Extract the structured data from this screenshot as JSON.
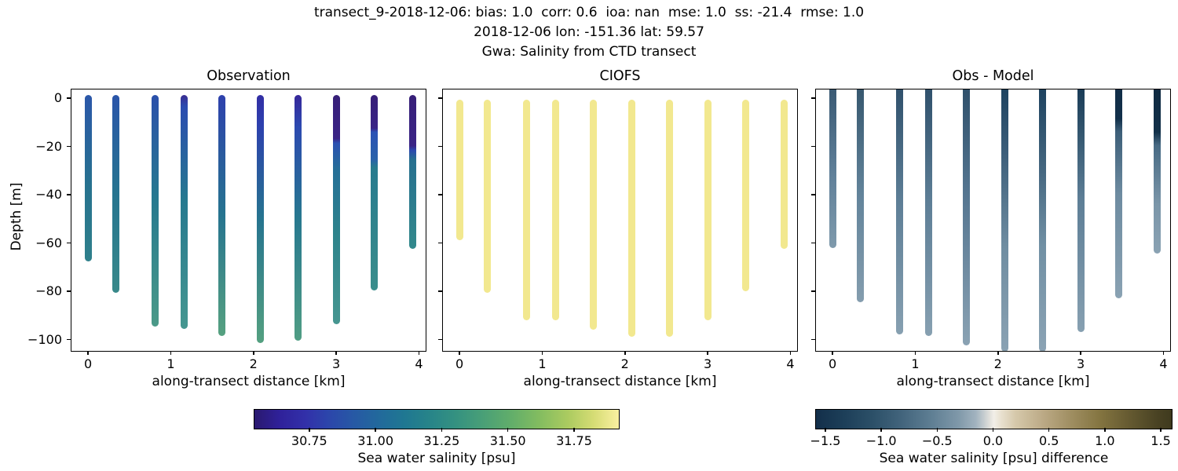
{
  "figure_title": {
    "line1": "transect_9-2018-12-06: bias: 1.0  corr: 0.6  ioa: nan  mse: 1.0  ss: -21.4  rmse: 1.0",
    "line2": "2018-12-06 lon: -151.36 lat: 59.57",
    "line3": "Gwa: Salinity from CTD transect"
  },
  "stats": {
    "bias": "1.0",
    "corr": "0.6",
    "ioa": "nan",
    "mse": "1.0",
    "ss": "-21.4",
    "rmse": "1.0"
  },
  "location": {
    "date": "2018-12-06",
    "lon": "-151.36",
    "lat": "59.57"
  },
  "chart_data": {
    "type": "scatter",
    "x_label": "along-transect distance [km]",
    "y_label": "Depth [m]",
    "x_range": [
      -0.2,
      4.1
    ],
    "y_range_top": 3.6,
    "y_range_bottom": -105.3,
    "x_ticks": [
      {
        "v": 0,
        "label": "0"
      },
      {
        "v": 1,
        "label": "1"
      },
      {
        "v": 2,
        "label": "2"
      },
      {
        "v": 3,
        "label": "3"
      },
      {
        "v": 4,
        "label": "4"
      }
    ],
    "y_ticks": [
      {
        "v": 0,
        "label": "0"
      },
      {
        "v": -20,
        "label": "−20"
      },
      {
        "v": -40,
        "label": "−40"
      },
      {
        "v": -60,
        "label": "−60"
      },
      {
        "v": -80,
        "label": "−80"
      },
      {
        "v": -100,
        "label": "−100"
      }
    ],
    "stations_km": [
      0.0,
      0.34,
      0.81,
      1.16,
      1.62,
      2.08,
      2.54,
      3.0,
      3.46,
      3.92
    ],
    "panels": [
      {
        "title": "Observation",
        "top": 0,
        "columns": [
          {
            "bottom": -66,
            "stops": [
              [
                0,
                "#2b57a9"
              ],
              [
                0.55,
                "#27728f"
              ],
              [
                1,
                "#2f808b"
              ]
            ]
          },
          {
            "bottom": -79,
            "stops": [
              [
                0,
                "#2a55a9"
              ],
              [
                0.5,
                "#26748f"
              ],
              [
                1,
                "#38898a"
              ]
            ]
          },
          {
            "bottom": -93,
            "stops": [
              [
                0,
                "#2b50ab"
              ],
              [
                0.45,
                "#26798f"
              ],
              [
                1,
                "#4b9a88"
              ]
            ]
          },
          {
            "bottom": -94,
            "stops": [
              [
                0,
                "#3b2d92"
              ],
              [
                0.05,
                "#2b4cb0"
              ],
              [
                0.45,
                "#26798f"
              ],
              [
                1,
                "#469790"
              ]
            ]
          },
          {
            "bottom": -97,
            "stops": [
              [
                0,
                "#2e41ad"
              ],
              [
                0.5,
                "#26748f"
              ],
              [
                1,
                "#56a180"
              ]
            ]
          },
          {
            "bottom": -100,
            "stops": [
              [
                0,
                "#322ea4"
              ],
              [
                0.12,
                "#2d40ae"
              ],
              [
                0.5,
                "#26748f"
              ],
              [
                1,
                "#54a080"
              ]
            ]
          },
          {
            "bottom": -99,
            "stops": [
              [
                0,
                "#36279a"
              ],
              [
                0.13,
                "#2c49b0"
              ],
              [
                0.5,
                "#27788f"
              ],
              [
                1,
                "#509d84"
              ]
            ]
          },
          {
            "bottom": -92,
            "stops": [
              [
                0,
                "#371f78"
              ],
              [
                0.19,
                "#3a2486"
              ],
              [
                0.21,
                "#2b50b2"
              ],
              [
                0.33,
                "#256f97"
              ],
              [
                0.6,
                "#2d838c"
              ],
              [
                1,
                "#469690"
              ]
            ]
          },
          {
            "bottom": -78,
            "stops": [
              [
                0,
                "#371f78"
              ],
              [
                0.17,
                "#3a2486"
              ],
              [
                0.19,
                "#2b52b5"
              ],
              [
                0.33,
                "#2a62a9"
              ],
              [
                0.37,
                "#277b8e"
              ],
              [
                1,
                "#3b8e8c"
              ]
            ]
          },
          {
            "bottom": -61,
            "stops": [
              [
                0,
                "#371f78"
              ],
              [
                0.33,
                "#3a2486"
              ],
              [
                0.36,
                "#2b49ae"
              ],
              [
                0.42,
                "#27708f"
              ],
              [
                1,
                "#33898c"
              ]
            ]
          }
        ]
      },
      {
        "title": "CIOFS",
        "top": -2,
        "color": "#f2e88f",
        "columns": [
          {
            "bottom": -57.5
          },
          {
            "bottom": -79
          },
          {
            "bottom": -90.5
          },
          {
            "bottom": -90.5
          },
          {
            "bottom": -94.5
          },
          {
            "bottom": -97.5
          },
          {
            "bottom": -97.5
          },
          {
            "bottom": -90.5
          },
          {
            "bottom": -78.5
          },
          {
            "bottom": -61
          }
        ]
      },
      {
        "title": "Obs - Model",
        "clip_top": true,
        "columns": [
          {
            "bottom": -60.5,
            "stops": [
              [
                0,
                "#3a5a74"
              ],
              [
                0.55,
                "#61819a"
              ],
              [
                1,
                "#7f9aac"
              ]
            ]
          },
          {
            "bottom": -83,
            "stops": [
              [
                0,
                "#37586f"
              ],
              [
                0.5,
                "#63849b"
              ],
              [
                1,
                "#849dae"
              ]
            ]
          },
          {
            "bottom": -96.5,
            "stops": [
              [
                0,
                "#30516c"
              ],
              [
                0.45,
                "#5d7e96"
              ],
              [
                1,
                "#87a0b1"
              ]
            ]
          },
          {
            "bottom": -97,
            "stops": [
              [
                0,
                "#30516c"
              ],
              [
                0.45,
                "#5d7e96"
              ],
              [
                1,
                "#87a0b1"
              ]
            ]
          },
          {
            "bottom": -101,
            "stops": [
              [
                0,
                "#2f506b"
              ],
              [
                0.4,
                "#547590"
              ],
              [
                1,
                "#8aa2b3"
              ]
            ]
          },
          {
            "bottom": -103.5,
            "stops": [
              [
                0,
                "#1e4360"
              ],
              [
                0.25,
                "#3d5f7b"
              ],
              [
                0.6,
                "#6f8da1"
              ],
              [
                1,
                "#8aa2b3"
              ]
            ]
          },
          {
            "bottom": -103.5,
            "stops": [
              [
                0,
                "#1e4360"
              ],
              [
                0.3,
                "#44667f"
              ],
              [
                0.6,
                "#7190a4"
              ],
              [
                1,
                "#8ba3b4"
              ]
            ]
          },
          {
            "bottom": -95.5,
            "stops": [
              [
                0,
                "#1a3c57"
              ],
              [
                0.18,
                "#33566f"
              ],
              [
                0.45,
                "#5d7e96"
              ],
              [
                1,
                "#87a0b1"
              ]
            ]
          },
          {
            "bottom": -81.5,
            "stops": [
              [
                0,
                "#112d47"
              ],
              [
                0.14,
                "#12304a"
              ],
              [
                0.2,
                "#3c5e78"
              ],
              [
                0.5,
                "#6d8ba0"
              ],
              [
                1,
                "#8aa2b3"
              ]
            ]
          },
          {
            "bottom": -63,
            "stops": [
              [
                0,
                "#0f2a42"
              ],
              [
                0.26,
                "#123049"
              ],
              [
                0.34,
                "#476a84"
              ],
              [
                0.7,
                "#7b96a9"
              ],
              [
                1,
                "#8aa2b3"
              ]
            ]
          }
        ]
      }
    ],
    "colorbars": [
      {
        "label": "Sea water salinity [psu]",
        "range": [
          30.543,
          31.916
        ],
        "ticks": [
          {
            "v": 30.75,
            "label": "30.75"
          },
          {
            "v": 31.0,
            "label": "31.00"
          },
          {
            "v": 31.25,
            "label": "31.25"
          },
          {
            "v": 31.5,
            "label": "31.50"
          },
          {
            "v": 31.75,
            "label": "31.75"
          }
        ],
        "gradient": [
          [
            0,
            "#2a196f"
          ],
          [
            0.07,
            "#2f219a"
          ],
          [
            0.14,
            "#3230a9"
          ],
          [
            0.2,
            "#2c45ab"
          ],
          [
            0.27,
            "#2758a5"
          ],
          [
            0.34,
            "#22699c"
          ],
          [
            0.41,
            "#1f7792"
          ],
          [
            0.48,
            "#278489"
          ],
          [
            0.55,
            "#349181"
          ],
          [
            0.62,
            "#479e78"
          ],
          [
            0.7,
            "#60ad6b"
          ],
          [
            0.78,
            "#82bc60"
          ],
          [
            0.86,
            "#abcb60"
          ],
          [
            0.93,
            "#d5dc74"
          ],
          [
            1,
            "#faf0a1"
          ]
        ]
      },
      {
        "label": "Sea water salinity [psu] difference",
        "range": [
          -1.584,
          1.591
        ],
        "ticks": [
          {
            "v": -1.5,
            "label": "−1.5"
          },
          {
            "v": -1.0,
            "label": "−1.0"
          },
          {
            "v": -0.5,
            "label": "−0.5"
          },
          {
            "v": 0.0,
            "label": "0.0"
          },
          {
            "v": 0.5,
            "label": "0.5"
          },
          {
            "v": 1.0,
            "label": "1.0"
          },
          {
            "v": 1.5,
            "label": "1.5"
          }
        ],
        "gradient": [
          [
            0,
            "#132f4a"
          ],
          [
            0.08,
            "#1d3f59"
          ],
          [
            0.16,
            "#2c5068"
          ],
          [
            0.24,
            "#42647c"
          ],
          [
            0.32,
            "#5d7d92"
          ],
          [
            0.4,
            "#7f98a9"
          ],
          [
            0.45,
            "#a2b3bf"
          ],
          [
            0.49,
            "#e3e2dd"
          ],
          [
            0.5,
            "#f2efe8"
          ],
          [
            0.52,
            "#e9e1d0"
          ],
          [
            0.56,
            "#d6c9ab"
          ],
          [
            0.64,
            "#bba985"
          ],
          [
            0.72,
            "#9e8d60"
          ],
          [
            0.8,
            "#837440"
          ],
          [
            0.88,
            "#655a31"
          ],
          [
            0.96,
            "#494223"
          ],
          [
            1,
            "#3f3a1e"
          ]
        ]
      }
    ]
  }
}
